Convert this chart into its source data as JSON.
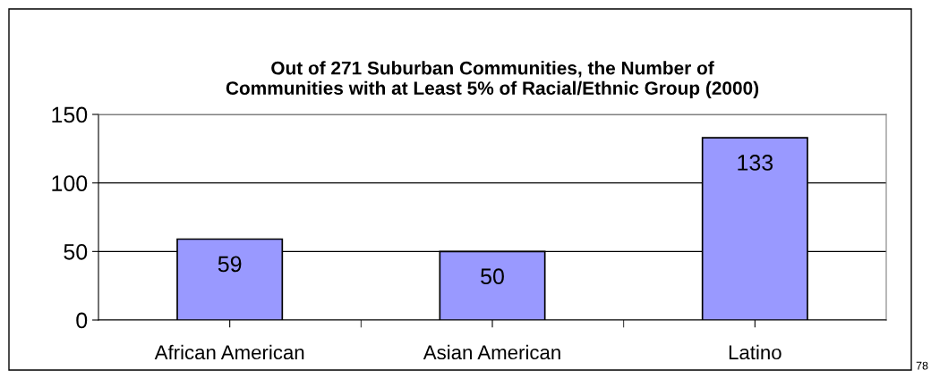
{
  "chart_data": {
    "type": "bar",
    "title": "Out of 271 Suburban Communities, the Number of\nCommunities with at Least 5% of Racial/Ethnic Group (2000)",
    "categories": [
      "African American",
      "Asian American",
      "Latino"
    ],
    "values": [
      59,
      50,
      133
    ],
    "color": "#9999ff",
    "ylim": [
      0,
      150
    ],
    "yticks": [
      0,
      50,
      100,
      150
    ],
    "grid": "y",
    "data_labels": true,
    "annotations": [
      "78"
    ]
  }
}
